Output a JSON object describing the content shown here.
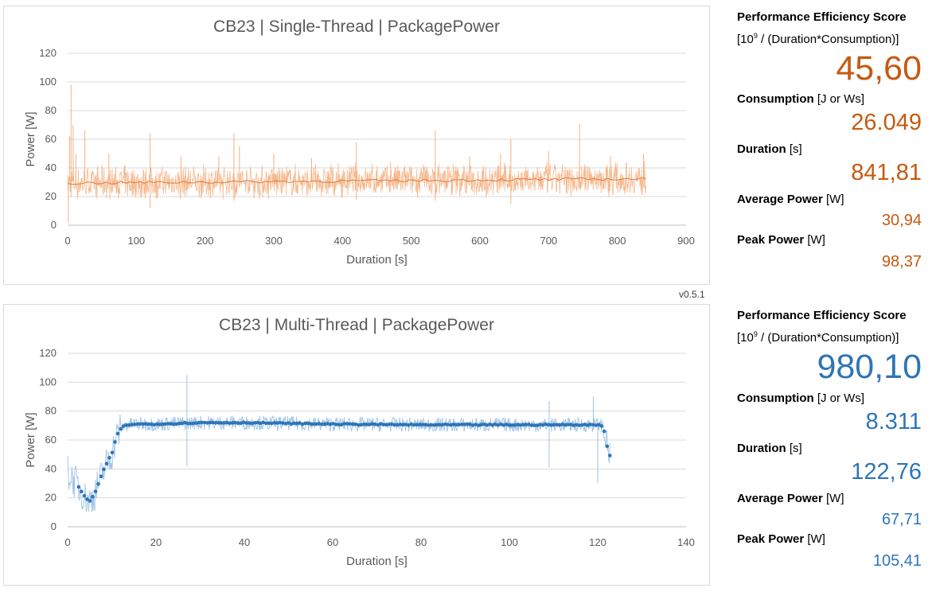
{
  "version": "v0.5.1",
  "charts": [
    {
      "title": "CB23 | Single-Thread | PackagePower",
      "xlabel": "Duration [s]",
      "ylabel": "Power [W]",
      "xticks": [
        "0",
        "100",
        "200",
        "300",
        "400",
        "500",
        "600",
        "700",
        "800",
        "900"
      ],
      "yticks": [
        "0",
        "20",
        "40",
        "60",
        "80",
        "100",
        "120"
      ]
    },
    {
      "title": "CB23 | Multi-Thread | PackagePower",
      "xlabel": "Duration [s]",
      "ylabel": "Power [W]",
      "xticks": [
        "0",
        "20",
        "40",
        "60",
        "80",
        "100",
        "120",
        "140"
      ],
      "yticks": [
        "0",
        "20",
        "40",
        "60",
        "80",
        "100",
        "120"
      ]
    }
  ],
  "chart_data": [
    {
      "type": "line",
      "title": "CB23 | Single-Thread | PackagePower",
      "xlabel": "Duration [s]",
      "ylabel": "Power [W]",
      "xlim": [
        0,
        900
      ],
      "ylim": [
        0,
        120
      ],
      "grid": true,
      "color": "#f4b183",
      "trend_color": "#e07b39",
      "duration": 841.81,
      "baseline": 30.9,
      "spikes": [
        [
          1,
          2
        ],
        [
          3,
          62
        ],
        [
          5,
          98
        ],
        [
          8,
          70
        ],
        [
          12,
          50
        ],
        [
          25,
          66
        ],
        [
          60,
          50
        ],
        [
          120,
          64
        ],
        [
          120,
          12
        ],
        [
          165,
          48
        ],
        [
          220,
          48
        ],
        [
          242,
          64
        ],
        [
          242,
          17
        ],
        [
          250,
          55
        ],
        [
          300,
          50
        ],
        [
          355,
          47
        ],
        [
          420,
          58
        ],
        [
          420,
          18
        ],
        [
          470,
          44
        ],
        [
          535,
          66
        ],
        [
          535,
          17
        ],
        [
          585,
          48
        ],
        [
          630,
          50
        ],
        [
          645,
          60
        ],
        [
          645,
          15
        ],
        [
          700,
          52
        ],
        [
          745,
          71
        ],
        [
          745,
          26
        ],
        [
          790,
          48
        ],
        [
          838,
          50
        ]
      ]
    },
    {
      "type": "line",
      "title": "CB23 | Multi-Thread | PackagePower",
      "xlabel": "Duration [s]",
      "ylabel": "Power [W]",
      "xlim": [
        0,
        140
      ],
      "ylim": [
        0,
        120
      ],
      "grid": true,
      "color": "#9dc3e6",
      "marker_color": "#2e75b6",
      "duration": 122.76,
      "profile": [
        [
          0,
          38
        ],
        [
          1,
          34
        ],
        [
          2,
          30
        ],
        [
          3,
          25
        ],
        [
          4,
          20
        ],
        [
          5,
          18
        ],
        [
          6,
          22
        ],
        [
          7,
          30
        ],
        [
          8,
          38
        ],
        [
          9,
          45
        ],
        [
          10,
          50
        ],
        [
          11,
          62
        ],
        [
          12,
          68
        ],
        [
          13,
          70
        ],
        [
          15,
          71
        ],
        [
          20,
          71
        ],
        [
          30,
          72
        ],
        [
          40,
          72
        ],
        [
          60,
          71
        ],
        [
          80,
          70.5
        ],
        [
          100,
          70.5
        ],
        [
          120,
          70.5
        ],
        [
          121,
          70
        ],
        [
          121.6,
          65
        ],
        [
          122,
          58
        ],
        [
          122.4,
          52
        ],
        [
          122.76,
          49
        ]
      ],
      "spikes": [
        [
          27,
          105
        ],
        [
          27,
          42
        ],
        [
          109,
          87
        ],
        [
          109,
          41
        ],
        [
          119,
          90
        ],
        [
          120,
          30
        ]
      ]
    }
  ],
  "metrics": [
    {
      "score_label": "Performance Efficiency Score",
      "score_unit_pre": "[10",
      "score_unit_sup": "9",
      "score_unit_post": " / (Duration*Consumption)]",
      "score": "45,60",
      "consumption_label": "Consumption",
      "consumption_unit": "[J or Ws]",
      "consumption": "26.049",
      "duration_label": "Duration",
      "duration_unit": "[s]",
      "duration": "841,81",
      "avg_label": "Average Power",
      "avg_unit": "[W]",
      "avg": "30,94",
      "peak_label": "Peak Power",
      "peak_unit": "[W]",
      "peak": "98,37",
      "color": "#c55a11"
    },
    {
      "score_label": "Performance Efficiency Score",
      "score_unit_pre": "[10",
      "score_unit_sup": "9",
      "score_unit_post": " / (Duration*Consumption)]",
      "score": "980,10",
      "consumption_label": "Consumption",
      "consumption_unit": "[J or Ws]",
      "consumption": "8.311",
      "duration_label": "Duration",
      "duration_unit": "[s]",
      "duration": "122,76",
      "avg_label": "Average Power",
      "avg_unit": "[W]",
      "avg": "67,71",
      "peak_label": "Peak Power",
      "peak_unit": "[W]",
      "peak": "105,41",
      "color": "#2e75b6"
    }
  ]
}
